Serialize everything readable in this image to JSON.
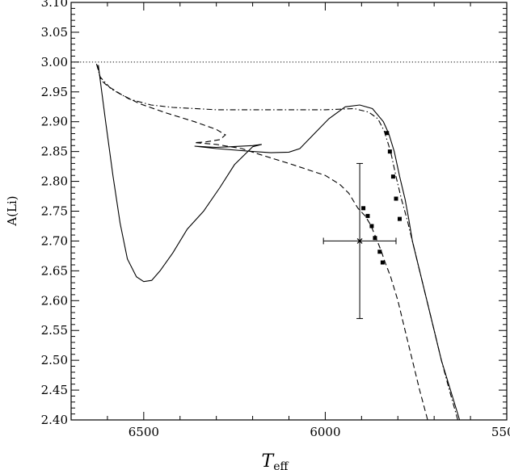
{
  "chart_data": {
    "type": "line",
    "title": "",
    "xlabel": "T",
    "xlabel_sub": "eff",
    "ylabel": "A(Li)",
    "xlim": [
      6700,
      5500
    ],
    "ylim": [
      2.4,
      3.1
    ],
    "x_reversed": true,
    "grid": false,
    "x_ticks": [
      6500,
      6000,
      5500
    ],
    "x_tick_labels": [
      "6500",
      "6000",
      "5500"
    ],
    "y_ticks": [
      2.4,
      2.45,
      2.5,
      2.55,
      2.6,
      2.65,
      2.7,
      2.75,
      2.8,
      2.85,
      2.9,
      2.95,
      3.0,
      3.05,
      3.1
    ],
    "y_tick_labels": [
      "2.40",
      "2.45",
      "2.50",
      "2.55",
      "2.60",
      "2.65",
      "2.70",
      "2.75",
      "2.80",
      "2.85",
      "2.90",
      "2.95",
      "3.00",
      "3.05",
      "3.10"
    ],
    "reference_line": {
      "y": 3.0,
      "style": "dotted"
    },
    "series": [
      {
        "style": "solid",
        "points": [
          [
            6625,
            2.995
          ],
          [
            6622,
            2.98
          ],
          [
            6605,
            2.9
          ],
          [
            6585,
            2.81
          ],
          [
            6565,
            2.73
          ],
          [
            6545,
            2.67
          ],
          [
            6520,
            2.64
          ],
          [
            6500,
            2.632
          ],
          [
            6478,
            2.634
          ],
          [
            6455,
            2.65
          ],
          [
            6420,
            2.68
          ],
          [
            6380,
            2.72
          ],
          [
            6335,
            2.75
          ],
          [
            6290,
            2.79
          ],
          [
            6250,
            2.828
          ],
          [
            6200,
            2.858
          ],
          [
            6175,
            2.862
          ],
          [
            6200,
            2.86
          ],
          [
            6260,
            2.858
          ],
          [
            6300,
            2.857
          ],
          [
            6360,
            2.859
          ],
          [
            6300,
            2.855
          ],
          [
            6200,
            2.85
          ],
          [
            6150,
            2.848
          ],
          [
            6100,
            2.849
          ],
          [
            6070,
            2.855
          ],
          [
            6030,
            2.88
          ],
          [
            5990,
            2.905
          ],
          [
            5945,
            2.925
          ],
          [
            5905,
            2.928
          ],
          [
            5870,
            2.922
          ],
          [
            5840,
            2.9
          ],
          [
            5825,
            2.88
          ],
          [
            5810,
            2.85
          ],
          [
            5795,
            2.808
          ],
          [
            5780,
            2.77
          ],
          [
            5770,
            2.737
          ],
          [
            5760,
            2.7
          ],
          [
            5740,
            2.65
          ],
          [
            5720,
            2.6
          ],
          [
            5700,
            2.55
          ],
          [
            5680,
            2.5
          ],
          [
            5655,
            2.45
          ],
          [
            5630,
            2.4
          ]
        ]
      },
      {
        "style": "dashed",
        "points": [
          [
            6628,
            2.995
          ],
          [
            6618,
            2.97
          ],
          [
            6600,
            2.96
          ],
          [
            6560,
            2.945
          ],
          [
            6510,
            2.93
          ],
          [
            6440,
            2.915
          ],
          [
            6360,
            2.9
          ],
          [
            6300,
            2.887
          ],
          [
            6275,
            2.878
          ],
          [
            6290,
            2.87
          ],
          [
            6330,
            2.866
          ],
          [
            6360,
            2.865
          ],
          [
            6300,
            2.862
          ],
          [
            6230,
            2.855
          ],
          [
            6180,
            2.845
          ],
          [
            6100,
            2.83
          ],
          [
            6000,
            2.81
          ],
          [
            5960,
            2.795
          ],
          [
            5935,
            2.78
          ],
          [
            5910,
            2.755
          ],
          [
            5890,
            2.742
          ],
          [
            5875,
            2.727
          ],
          [
            5860,
            2.705
          ],
          [
            5845,
            2.682
          ],
          [
            5835,
            2.664
          ],
          [
            5820,
            2.64
          ],
          [
            5800,
            2.6
          ],
          [
            5780,
            2.55
          ],
          [
            5760,
            2.5
          ],
          [
            5740,
            2.45
          ],
          [
            5718,
            2.4
          ]
        ]
      },
      {
        "style": "dash-dot",
        "points": [
          [
            6630,
            2.997
          ],
          [
            6620,
            2.975
          ],
          [
            6590,
            2.955
          ],
          [
            6540,
            2.938
          ],
          [
            6480,
            2.928
          ],
          [
            6420,
            2.924
          ],
          [
            6300,
            2.92
          ],
          [
            6150,
            2.92
          ],
          [
            6000,
            2.92
          ],
          [
            5920,
            2.922
          ],
          [
            5880,
            2.916
          ],
          [
            5855,
            2.905
          ],
          [
            5838,
            2.885
          ],
          [
            5820,
            2.85
          ],
          [
            5805,
            2.808
          ],
          [
            5790,
            2.77
          ],
          [
            5775,
            2.737
          ],
          [
            5760,
            2.7
          ],
          [
            5740,
            2.65
          ],
          [
            5720,
            2.6
          ],
          [
            5700,
            2.55
          ],
          [
            5680,
            2.5
          ],
          [
            5658,
            2.45
          ],
          [
            5635,
            2.4
          ]
        ]
      }
    ],
    "markers": [
      {
        "x": 5830,
        "y": 2.881
      },
      {
        "x": 5822,
        "y": 2.85
      },
      {
        "x": 5813,
        "y": 2.808
      },
      {
        "x": 5805,
        "y": 2.771
      },
      {
        "x": 5795,
        "y": 2.737
      },
      {
        "x": 5895,
        "y": 2.755
      },
      {
        "x": 5883,
        "y": 2.742
      },
      {
        "x": 5872,
        "y": 2.725
      },
      {
        "x": 5863,
        "y": 2.705
      },
      {
        "x": 5850,
        "y": 2.682
      },
      {
        "x": 5842,
        "y": 2.664
      }
    ],
    "error_point": {
      "x": 5905,
      "y": 2.7,
      "xerr": 100,
      "yerr": 0.13
    }
  }
}
